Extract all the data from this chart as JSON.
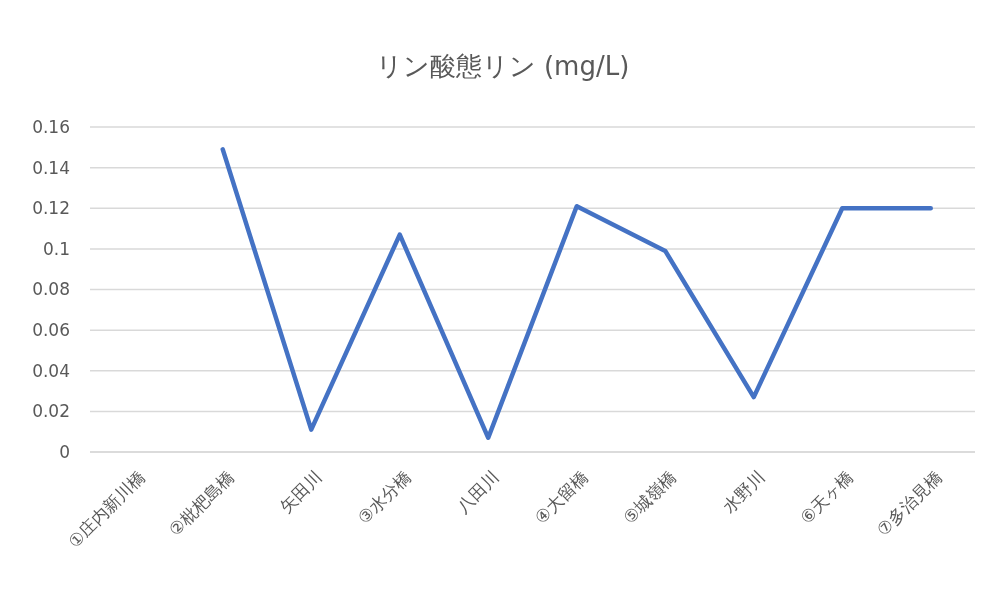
{
  "chart_data": {
    "type": "line",
    "title": "リン酸態リン (mg/L)",
    "categories": [
      "①庄内新川橋",
      "②枇杷島橋",
      "矢田川",
      "③水分橋",
      "八田川",
      "④大留橋",
      "⑤城嶺橋",
      "水野川",
      "⑥天ヶ橋",
      "⑦多治見橋"
    ],
    "series": [
      {
        "color": "#4472c4",
        "values": [
          null,
          0.149,
          0.011,
          0.107,
          0.007,
          0.121,
          0.099,
          0.027,
          0.12,
          0.12
        ]
      }
    ],
    "ylim": [
      0,
      0.16
    ],
    "yticks": [
      0,
      0.02,
      0.04,
      0.06,
      0.08,
      0.1,
      0.12,
      0.14,
      0.16
    ],
    "grid": "y",
    "marker": "none",
    "line_style": "solid"
  }
}
